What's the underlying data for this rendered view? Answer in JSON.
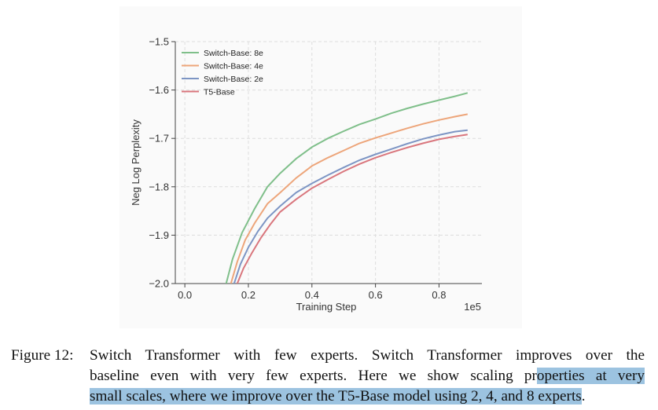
{
  "chart_data": {
    "type": "line",
    "xlabel": "Training Step",
    "ylabel": "Neg Log Perplexity",
    "x_offset_label": "1e5",
    "xlim": [
      -0.03,
      0.935
    ],
    "ylim": [
      -2.0,
      -1.5
    ],
    "xticks": [
      "0.0",
      "0.2",
      "0.4",
      "0.6",
      "0.8"
    ],
    "xtick_values": [
      0.0,
      0.2,
      0.4,
      0.6,
      0.8
    ],
    "yticks": [
      "−1.5",
      "−1.6",
      "−1.7",
      "−1.8",
      "−1.9",
      "−2.0"
    ],
    "ytick_values": [
      -1.5,
      -1.6,
      -1.7,
      -1.8,
      -1.9,
      -2.0
    ],
    "grid": true,
    "legend_position": "top-left",
    "series": [
      {
        "name": "Switch-Base: 8e",
        "color": "#7fbf8a",
        "x": [
          0.13,
          0.15,
          0.18,
          0.22,
          0.26,
          0.3,
          0.35,
          0.4,
          0.45,
          0.5,
          0.55,
          0.6,
          0.65,
          0.7,
          0.75,
          0.8,
          0.85,
          0.89
        ],
        "y": [
          -2.0,
          -1.95,
          -1.895,
          -1.845,
          -1.8,
          -1.772,
          -1.742,
          -1.718,
          -1.7,
          -1.685,
          -1.671,
          -1.66,
          -1.648,
          -1.638,
          -1.629,
          -1.621,
          -1.613,
          -1.606
        ]
      },
      {
        "name": "Switch-Base: 4e",
        "color": "#eda57a",
        "x": [
          0.145,
          0.165,
          0.19,
          0.22,
          0.26,
          0.3,
          0.35,
          0.4,
          0.45,
          0.5,
          0.55,
          0.6,
          0.65,
          0.7,
          0.75,
          0.8,
          0.85,
          0.89
        ],
        "y": [
          -2.0,
          -1.955,
          -1.91,
          -1.875,
          -1.835,
          -1.812,
          -1.782,
          -1.757,
          -1.74,
          -1.725,
          -1.71,
          -1.699,
          -1.689,
          -1.679,
          -1.67,
          -1.662,
          -1.655,
          -1.65
        ]
      },
      {
        "name": "Switch-Base: 2e",
        "color": "#7d95c4",
        "x": [
          0.155,
          0.175,
          0.2,
          0.23,
          0.26,
          0.3,
          0.35,
          0.4,
          0.45,
          0.5,
          0.55,
          0.6,
          0.65,
          0.7,
          0.75,
          0.8,
          0.85,
          0.89
        ],
        "y": [
          -2.0,
          -1.96,
          -1.925,
          -1.892,
          -1.865,
          -1.84,
          -1.812,
          -1.793,
          -1.776,
          -1.76,
          -1.745,
          -1.733,
          -1.722,
          -1.711,
          -1.701,
          -1.693,
          -1.686,
          -1.683
        ]
      },
      {
        "name": "T5-Base",
        "color": "#d9767d",
        "x": [
          0.165,
          0.185,
          0.21,
          0.24,
          0.27,
          0.3,
          0.35,
          0.4,
          0.45,
          0.5,
          0.55,
          0.6,
          0.65,
          0.7,
          0.75,
          0.8,
          0.85,
          0.89
        ],
        "y": [
          -2.0,
          -1.968,
          -1.938,
          -1.905,
          -1.877,
          -1.852,
          -1.826,
          -1.803,
          -1.785,
          -1.768,
          -1.753,
          -1.74,
          -1.729,
          -1.719,
          -1.71,
          -1.702,
          -1.696,
          -1.692
        ]
      }
    ]
  },
  "caption": {
    "label": "Figure 12:",
    "line1": "Switch Transformer with few experts.  Switch Transformer improves over the",
    "line2_plain": "baseline even with very few experts.  Here we show scaling pr",
    "line2_highlight": "operties at very",
    "line3_highlight": "small scales, where we improve over the T5-Base model using 2, 4, and 8 experts",
    "line3_end": "."
  },
  "colors": {
    "highlight": "#9cc3e0",
    "axis": "#444444",
    "grid": "#dddddd"
  }
}
